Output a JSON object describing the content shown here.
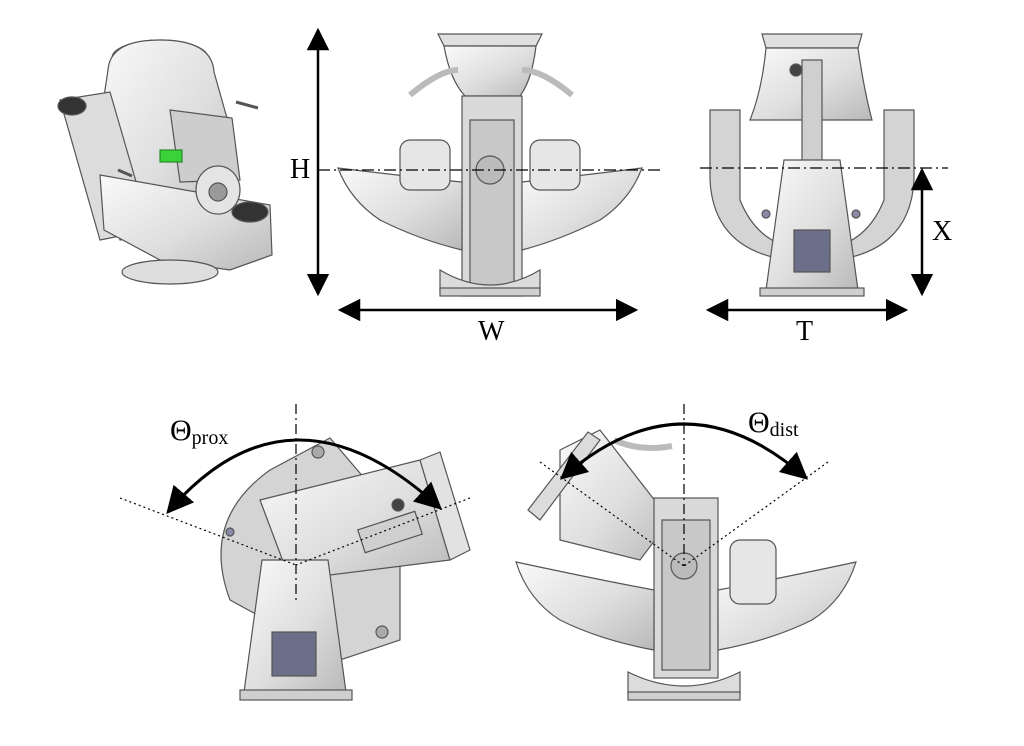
{
  "dimensions": {
    "height": "H",
    "width": "W",
    "thickness": "T",
    "pivot_height": "X"
  },
  "angles": {
    "proximal": {
      "symbol": "Θ",
      "subscript": "prox"
    },
    "distal": {
      "symbol": "Θ",
      "subscript": "dist"
    }
  },
  "colors": {
    "part_fill": "#e9e9e9",
    "part_light": "#f7f7f7",
    "part_shade": "#c9c9c9",
    "part_dark": "#8a8a8a",
    "outline": "#555555",
    "pcb": "#6b6f8a",
    "accent_green": "#3bd13b",
    "arrow": "#000000"
  }
}
